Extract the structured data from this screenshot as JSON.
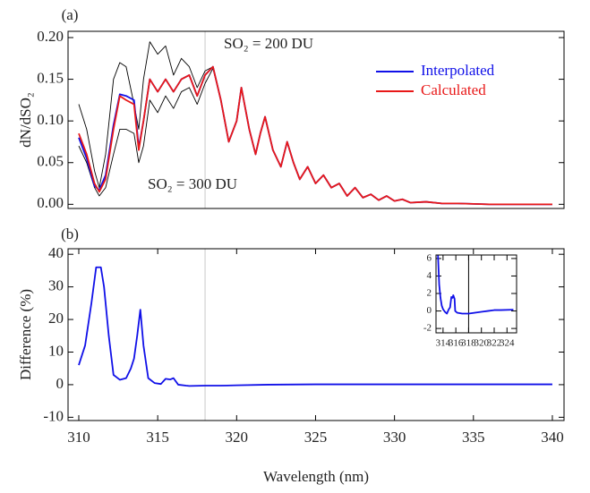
{
  "chart_data": [
    {
      "type": "line",
      "label": "(a)",
      "ylabel": "dN/dSO₂",
      "x": [
        310.0,
        310.5,
        311.0,
        311.3,
        311.7,
        312.2,
        312.6,
        313.0,
        313.5,
        313.8,
        314.1,
        314.5,
        315.0,
        315.5,
        316.0,
        316.5,
        317.0,
        317.5,
        318.0,
        318.5,
        319.0,
        319.5,
        320.0,
        320.3,
        320.8,
        321.2,
        321.5,
        321.8,
        322.3,
        322.8,
        323.2,
        323.6,
        324.0,
        324.5,
        325.0,
        325.5,
        326.0,
        326.5,
        327.0,
        327.5,
        328.0,
        328.5,
        329.0,
        329.5,
        330.0,
        330.5,
        331,
        332,
        333,
        334,
        336,
        340
      ],
      "series": [
        {
          "color": "#000000",
          "values": [
            0.12,
            0.09,
            0.04,
            0.02,
            0.06,
            0.15,
            0.17,
            0.165,
            0.12,
            0.09,
            0.15,
            0.195,
            0.18,
            0.19,
            0.155,
            0.175,
            0.165,
            0.14,
            0.16,
            0.165,
            0.125,
            null,
            null,
            null,
            null,
            null,
            null,
            null,
            null,
            null,
            null,
            null,
            null,
            null,
            null,
            null,
            null,
            null,
            null,
            null,
            null,
            null,
            null,
            null,
            null,
            null,
            null,
            null,
            null,
            null,
            null,
            null
          ]
        },
        {
          "color": "#000000",
          "values": [
            0.07,
            0.05,
            0.02,
            0.01,
            0.02,
            0.06,
            0.09,
            0.09,
            0.085,
            0.05,
            0.07,
            0.125,
            0.11,
            0.13,
            0.115,
            0.135,
            0.14,
            0.12,
            0.145,
            0.163,
            0.125,
            null,
            null,
            null,
            null,
            null,
            null,
            null,
            null,
            null,
            null,
            null,
            null,
            null,
            null,
            null,
            null,
            null,
            null,
            null,
            null,
            null,
            null,
            null,
            null,
            null,
            null,
            null,
            null,
            null,
            null,
            null
          ]
        },
        {
          "name": "Interpolated",
          "color": "#1010e8",
          "values": [
            0.08,
            0.055,
            0.022,
            0.017,
            0.035,
            0.095,
            0.132,
            0.13,
            0.125,
            0.068,
            0.1,
            0.15,
            0.135,
            0.15,
            0.135,
            0.15,
            0.155,
            0.13,
            0.155,
            0.165,
            0.125,
            0.075,
            0.1,
            0.14,
            0.09,
            0.06,
            0.085,
            0.105,
            0.065,
            0.045,
            0.075,
            0.05,
            0.03,
            0.045,
            0.025,
            0.035,
            0.02,
            0.025,
            0.01,
            0.02,
            0.008,
            0.012,
            0.005,
            0.01,
            0.004,
            0.006,
            0.002,
            0.003,
            0.001,
            0.001,
            0,
            0
          ]
        },
        {
          "name": "Calculated",
          "color": "#e81818",
          "values": [
            0.085,
            0.06,
            0.025,
            0.015,
            0.03,
            0.09,
            0.13,
            0.125,
            0.12,
            0.065,
            0.1,
            0.15,
            0.135,
            0.15,
            0.135,
            0.15,
            0.155,
            0.13,
            0.155,
            0.165,
            0.125,
            0.075,
            0.1,
            0.14,
            0.09,
            0.06,
            0.085,
            0.105,
            0.065,
            0.045,
            0.075,
            0.05,
            0.03,
            0.045,
            0.025,
            0.035,
            0.02,
            0.025,
            0.01,
            0.02,
            0.008,
            0.012,
            0.005,
            0.01,
            0.004,
            0.006,
            0.002,
            0.003,
            0.001,
            0.001,
            0,
            0
          ]
        }
      ],
      "annotations": [
        "SO₂ = 200 DU",
        "SO₂ = 300 DU"
      ],
      "legend": "upper right",
      "vline": 318,
      "vline_color": "#c8c8c8",
      "xlim": [
        309.32,
        340.74
      ],
      "ylim": [
        -0.005,
        0.2075
      ],
      "yticks": [
        {
          "value": 0,
          "label": "0.00"
        },
        {
          "value": 0.05,
          "label": "0.05"
        },
        {
          "value": 0.1,
          "label": "0.10"
        },
        {
          "value": 0.15,
          "label": "0.15"
        },
        {
          "value": 0.2,
          "label": "0.20"
        }
      ]
    },
    {
      "type": "line",
      "label": "(b)",
      "ylabel": "Difference (%)",
      "xlabel": "Wavelength (nm)",
      "x": [
        310.0,
        310.4,
        310.8,
        311.1,
        311.4,
        311.6,
        311.9,
        312.2,
        312.6,
        313.0,
        313.3,
        313.5,
        313.7,
        313.9,
        314.1,
        314.4,
        314.8,
        315.2,
        315.5,
        315.8,
        316.0,
        316.3,
        316.8,
        317,
        318,
        319,
        320,
        322,
        325,
        330,
        340
      ],
      "series": [
        {
          "color": "#1010e8",
          "values": [
            6,
            12,
            25,
            36,
            36,
            30,
            15,
            3,
            1.5,
            2,
            5,
            8,
            15,
            23,
            12,
            2,
            0.5,
            0.2,
            1.8,
            1.6,
            2,
            0,
            -0.3,
            -0.4,
            -0.3,
            -0.3,
            -0.2,
            0,
            0.1,
            0.1,
            0.1
          ]
        }
      ],
      "vline": 318,
      "vline_color": "#c8c8c8",
      "xlim": [
        309.32,
        340.74
      ],
      "ylim": [
        -11,
        41.7
      ],
      "xticks": [
        310,
        315,
        320,
        325,
        330,
        335,
        340
      ],
      "yticks": [
        -10,
        0,
        10,
        20,
        30,
        40
      ]
    },
    {
      "type": "line",
      "x": [
        313.2,
        313.4,
        313.6,
        313.8,
        314.0,
        314.3,
        314.6,
        314.9,
        315.1,
        315.3,
        315.5,
        315.6,
        315.8,
        315.9,
        316.2,
        317,
        318,
        319,
        320,
        321,
        322,
        323,
        325
      ],
      "series": [
        {
          "color": "#1010e8",
          "values": [
            6.5,
            3,
            1.5,
            0.6,
            0.2,
            -0.1,
            -0.3,
            0.2,
            0.4,
            1.6,
            1.5,
            1.8,
            1.4,
            0,
            -0.2,
            -0.3,
            -0.3,
            -0.2,
            -0.1,
            0,
            0.1,
            0.1,
            0.15
          ]
        }
      ],
      "vline": 318,
      "vline_color": "#000000",
      "xlim": [
        312.9,
        325.5
      ],
      "ylim": [
        -2.5,
        6.4
      ],
      "xticks": [
        314,
        316,
        318,
        320,
        322,
        324
      ],
      "yticks": [
        -2,
        0,
        2,
        4,
        6
      ]
    }
  ]
}
